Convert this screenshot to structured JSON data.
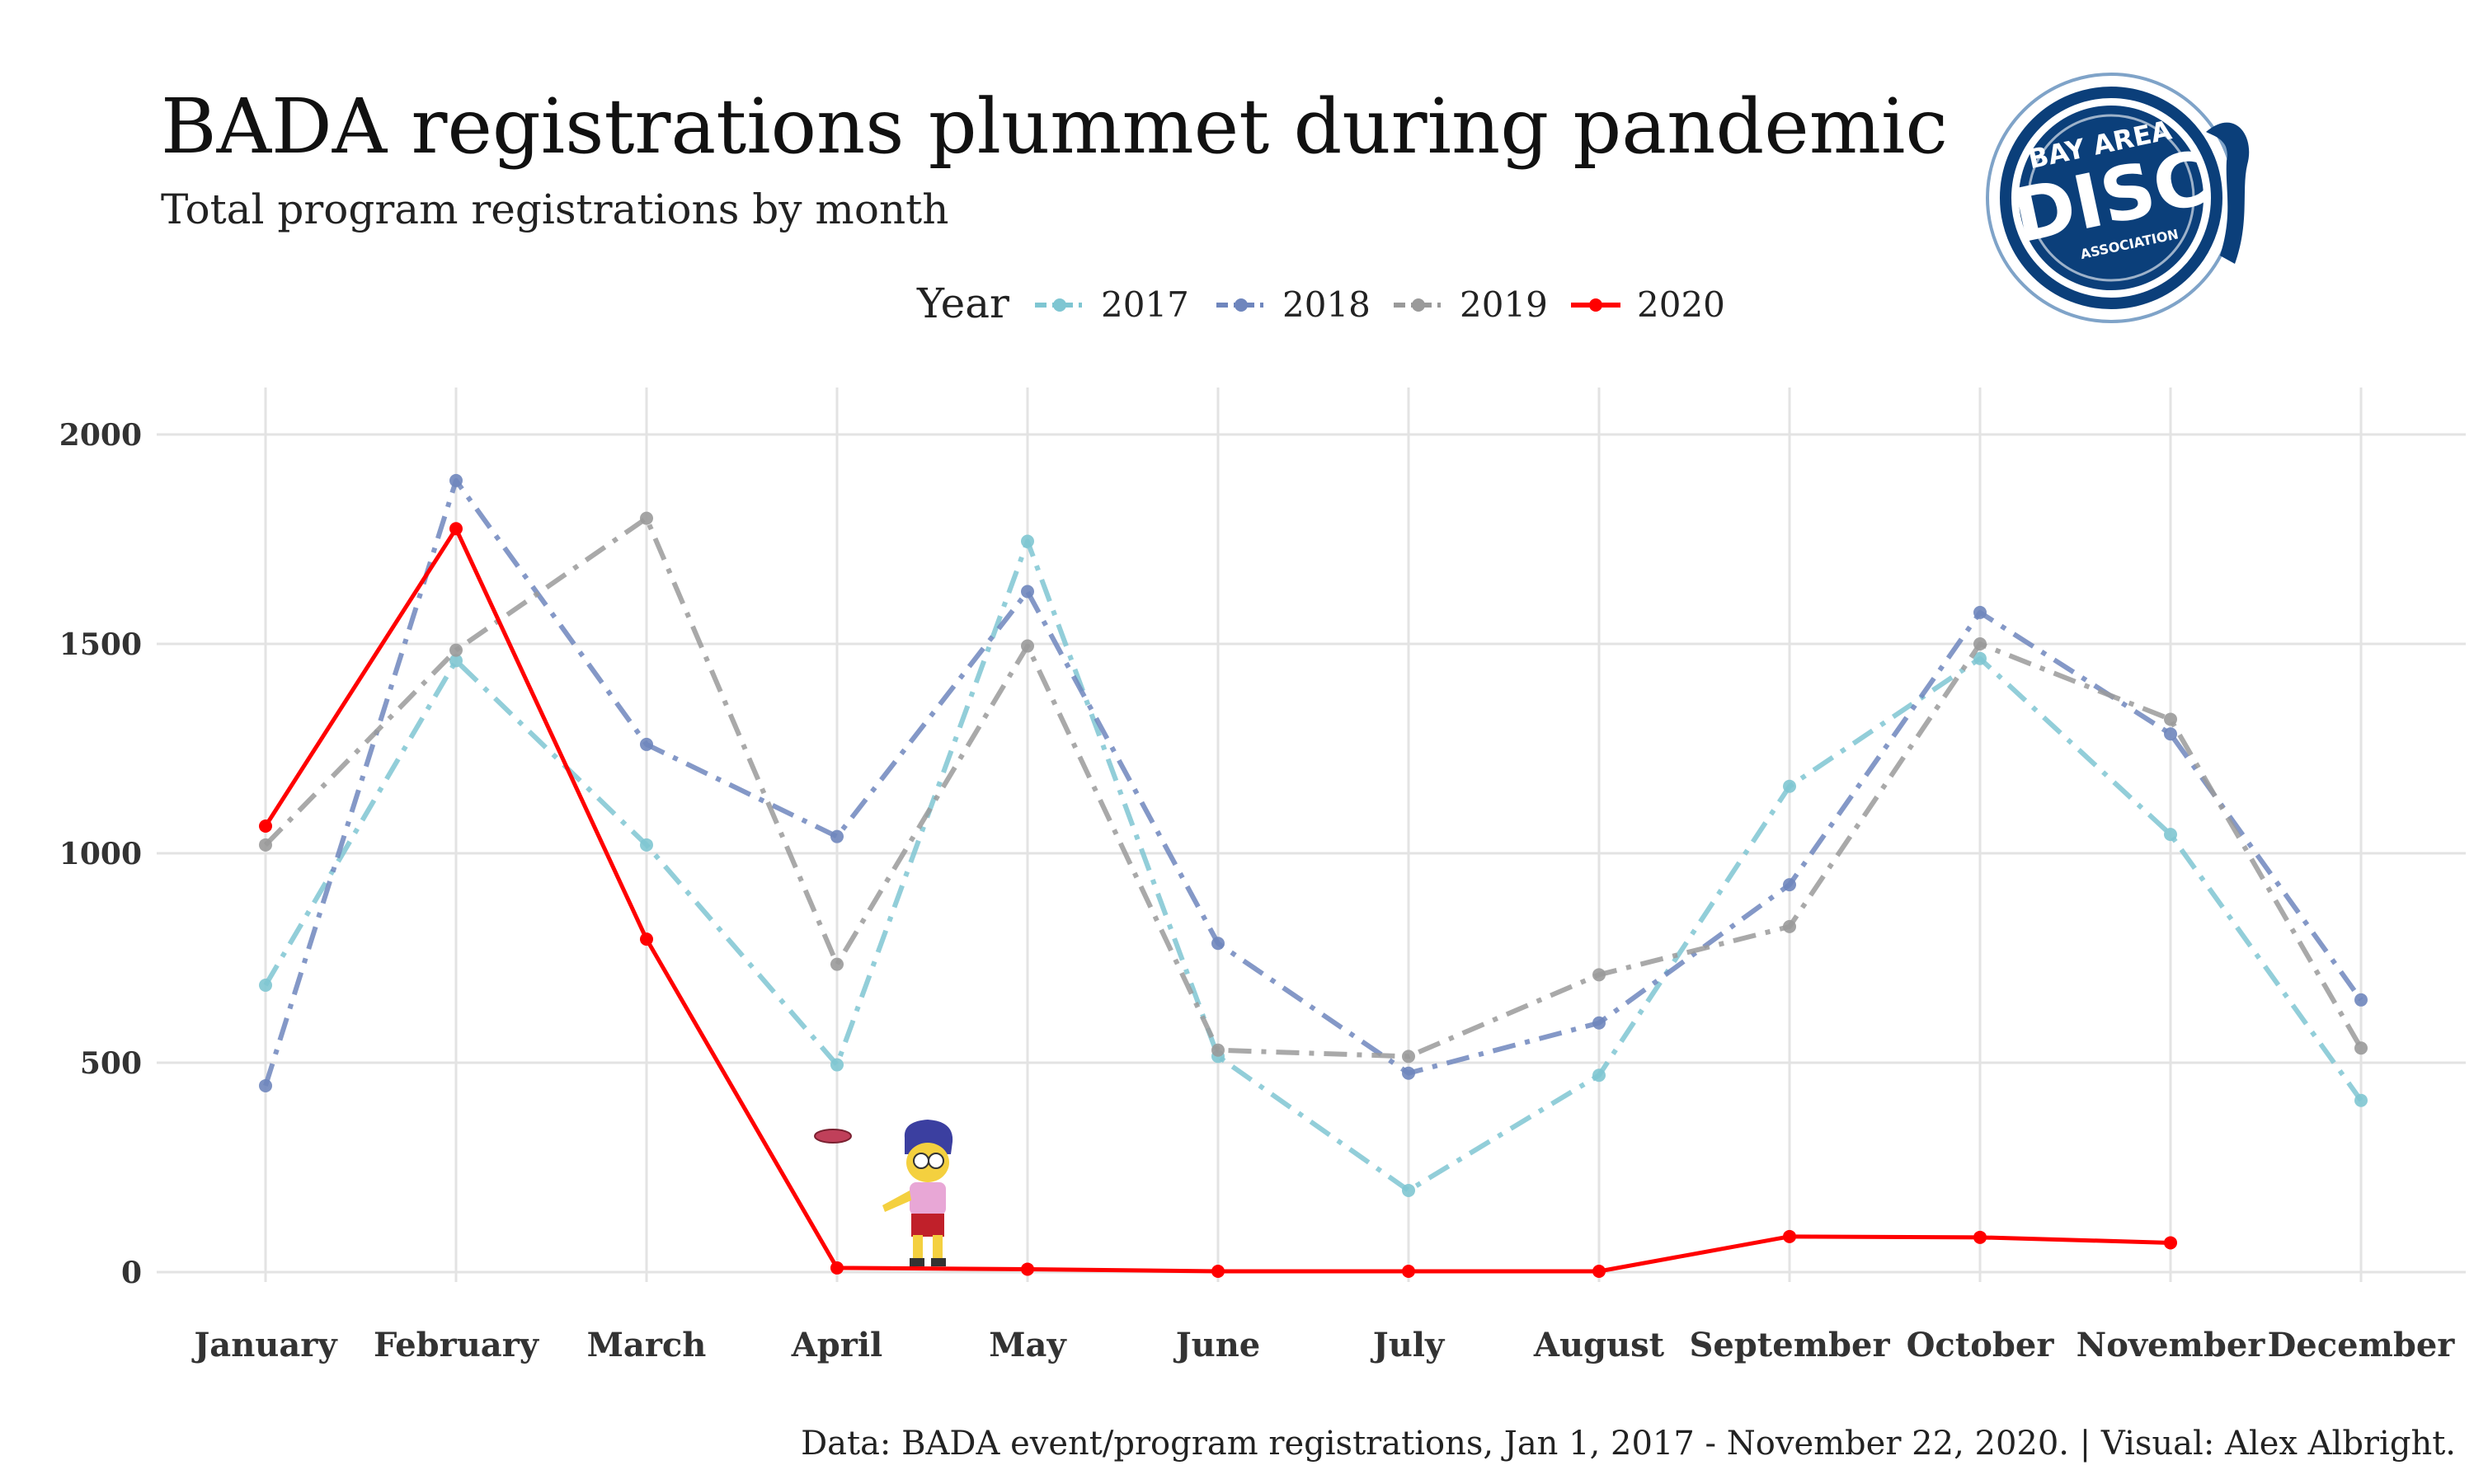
{
  "title": "BADA registrations plummet during pandemic",
  "subtitle": "Total program registrations by month",
  "caption": "Data: BADA event/program registrations, Jan 1, 2017 - November 22, 2020. | Visual: Alex Albright.",
  "logo": {
    "line1": "BAY AREA",
    "line2": "DISC",
    "line3": "ASSOCIATION",
    "color": "#0b3f7a"
  },
  "legend_title": "Year",
  "chart_data": {
    "type": "line",
    "categories": [
      "January",
      "February",
      "March",
      "April",
      "May",
      "June",
      "July",
      "August",
      "September",
      "October",
      "November",
      "December"
    ],
    "ylim": [
      0,
      2000
    ],
    "yticks": [
      0,
      500,
      1000,
      1500,
      2000
    ],
    "grid": true,
    "legend_position": "top",
    "series": [
      {
        "name": "2017",
        "color": "#7fc6d2",
        "dash": "dashdot",
        "values": [
          685,
          1460,
          1020,
          495,
          1745,
          515,
          195,
          470,
          1160,
          1465,
          1045,
          410
        ]
      },
      {
        "name": "2018",
        "color": "#6f86bd",
        "dash": "dashdot",
        "values": [
          445,
          1890,
          1260,
          1040,
          1625,
          785,
          475,
          595,
          925,
          1575,
          1285,
          650
        ]
      },
      {
        "name": "2019",
        "color": "#9a9a9a",
        "dash": "dashdot",
        "values": [
          1020,
          1485,
          1800,
          735,
          1495,
          530,
          515,
          710,
          825,
          1500,
          1320,
          535
        ]
      },
      {
        "name": "2020",
        "color": "#ff0000",
        "dash": "solid",
        "values": [
          1065,
          1775,
          795,
          10,
          7,
          2,
          2,
          2,
          85,
          83,
          70,
          null
        ]
      }
    ]
  }
}
